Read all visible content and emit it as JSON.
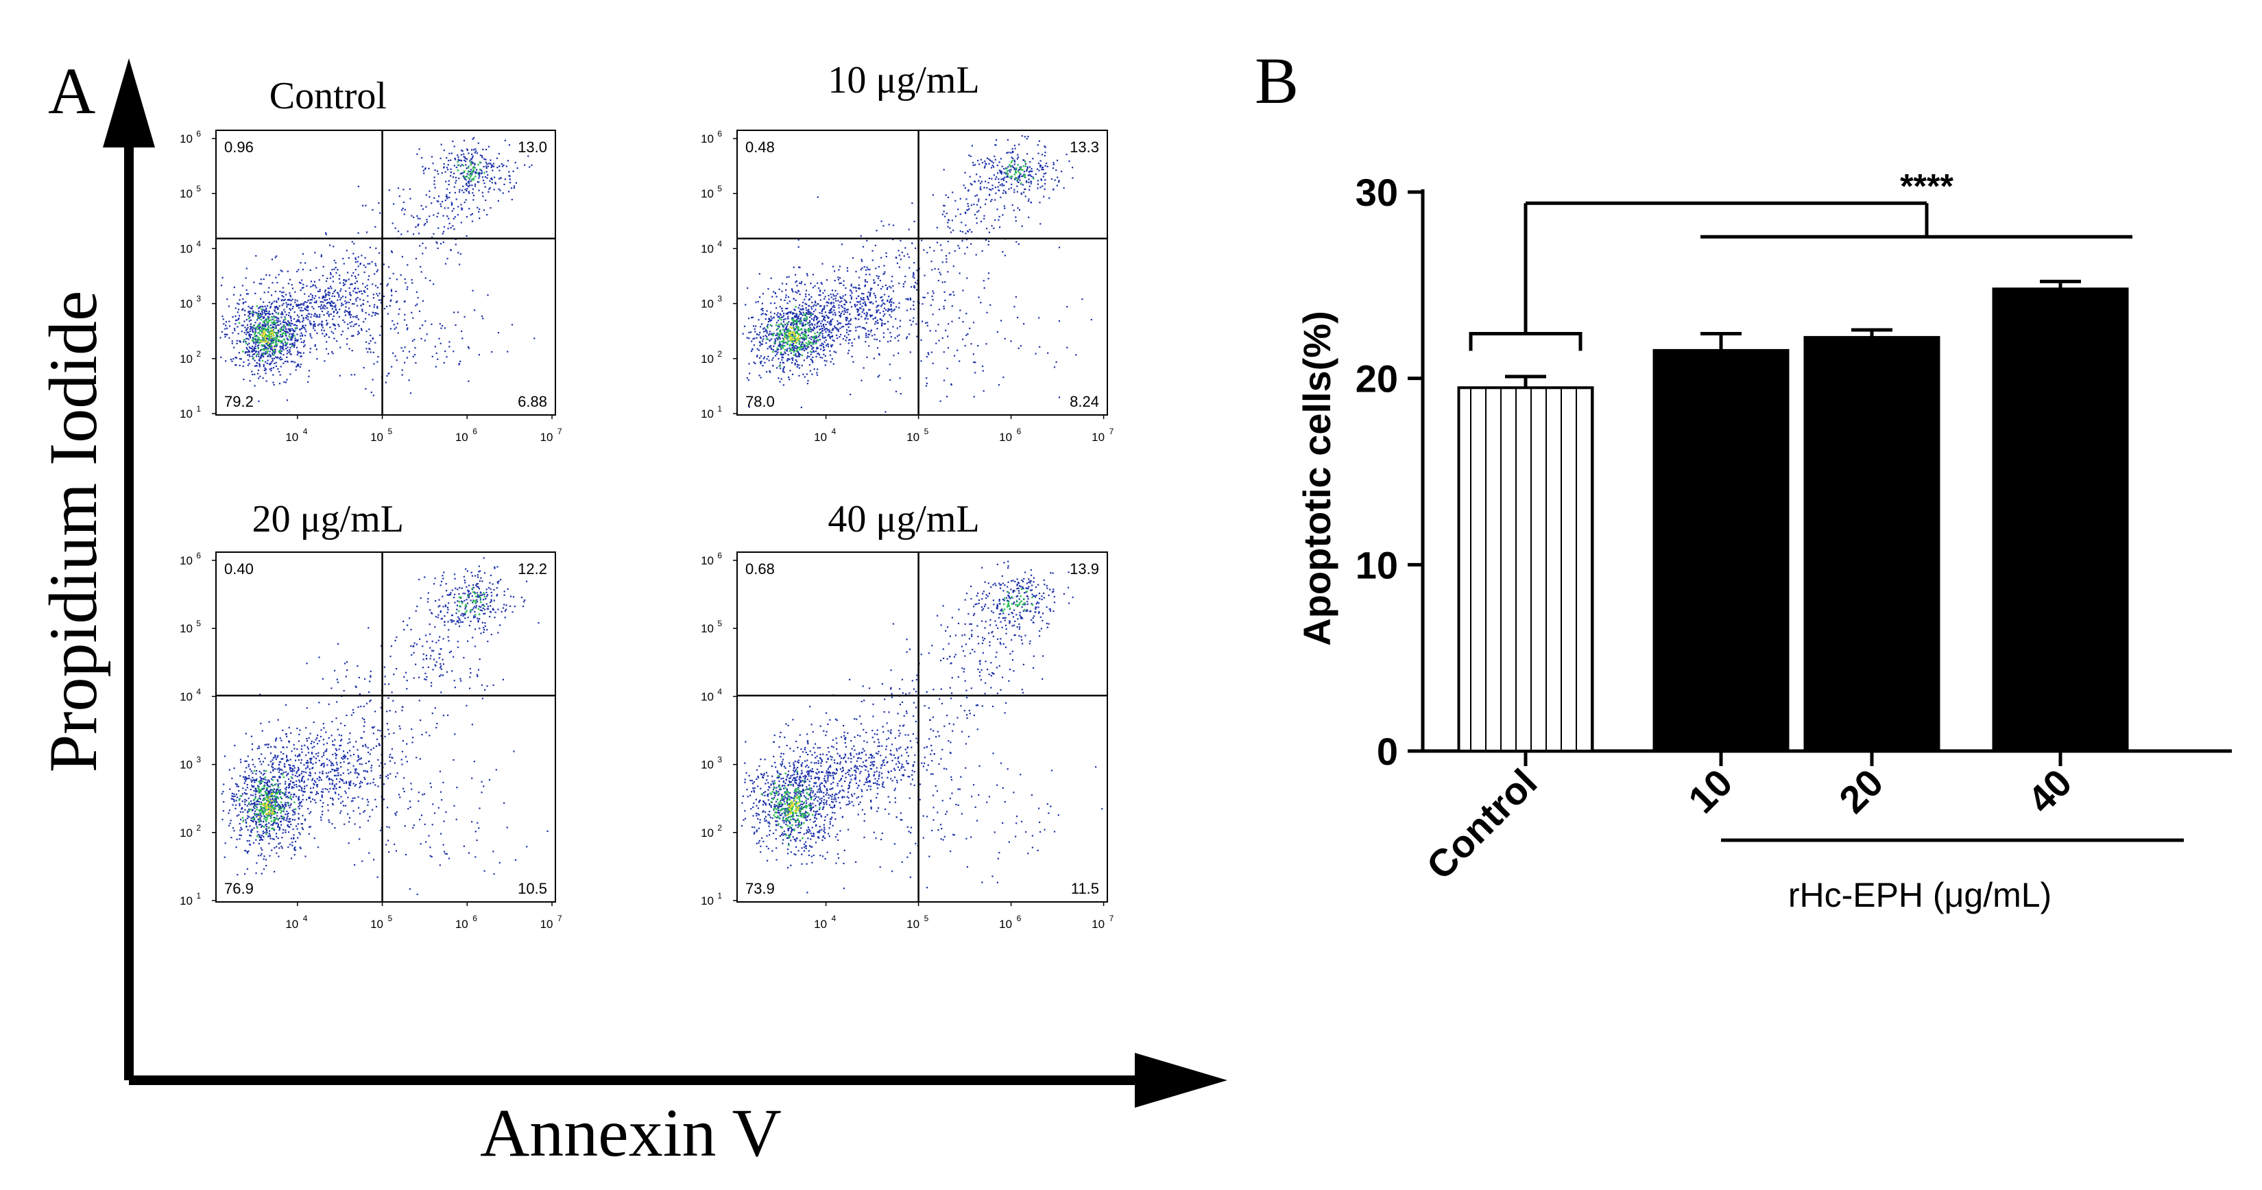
{
  "panel_a": {
    "letter": "A",
    "x_axis_label": "Annexin V",
    "y_axis_label": "Propidium Iodide",
    "plots": [
      {
        "title": "Control",
        "quadrants": {
          "ul": "0.96",
          "ur": "13.0",
          "ll": "79.2",
          "lr": "6.88"
        }
      },
      {
        "title": "10 μg/mL",
        "quadrants": {
          "ul": "0.48",
          "ur": "13.3",
          "ll": "78.0",
          "lr": "8.24"
        }
      },
      {
        "title": "20 μg/mL",
        "quadrants": {
          "ul": "0.40",
          "ur": "12.2",
          "ll": "76.9",
          "lr": "10.5"
        }
      },
      {
        "title": "40 μg/mL",
        "quadrants": {
          "ul": "0.68",
          "ur": "13.9",
          "ll": "73.9",
          "lr": "11.5"
        }
      }
    ],
    "y_ticks": [
      "10",
      "10",
      "10",
      "10",
      "10",
      "10"
    ],
    "y_tick_exps": [
      "1",
      "2",
      "3",
      "4",
      "5",
      "6"
    ],
    "x_ticks": [
      "10",
      "10",
      "10",
      "10"
    ],
    "x_tick_exps": [
      "4",
      "5",
      "6",
      "7"
    ],
    "colors": {
      "dots": "#1a2fa8",
      "dense": "#2fbf55",
      "core": "#e8e03a"
    }
  },
  "panel_b": {
    "letter": "B",
    "significance": "****",
    "group_label": "rHc-EPH (μg/mL)"
  },
  "chart_data": {
    "type": "bar",
    "title": "",
    "xlabel": "rHc-EPH (μg/mL)",
    "ylabel": "Apoptotic cells(%)",
    "categories": [
      "Control",
      "10",
      "20",
      "40"
    ],
    "values": [
      19.5,
      21.5,
      22.2,
      24.8
    ],
    "errors": [
      0.6,
      0.9,
      0.4,
      0.4
    ],
    "ylim": [
      0,
      30
    ],
    "yticks": [
      0,
      10,
      20,
      30
    ],
    "fills": [
      "hatched",
      "#000000",
      "#000000",
      "#000000"
    ],
    "grid": false
  }
}
